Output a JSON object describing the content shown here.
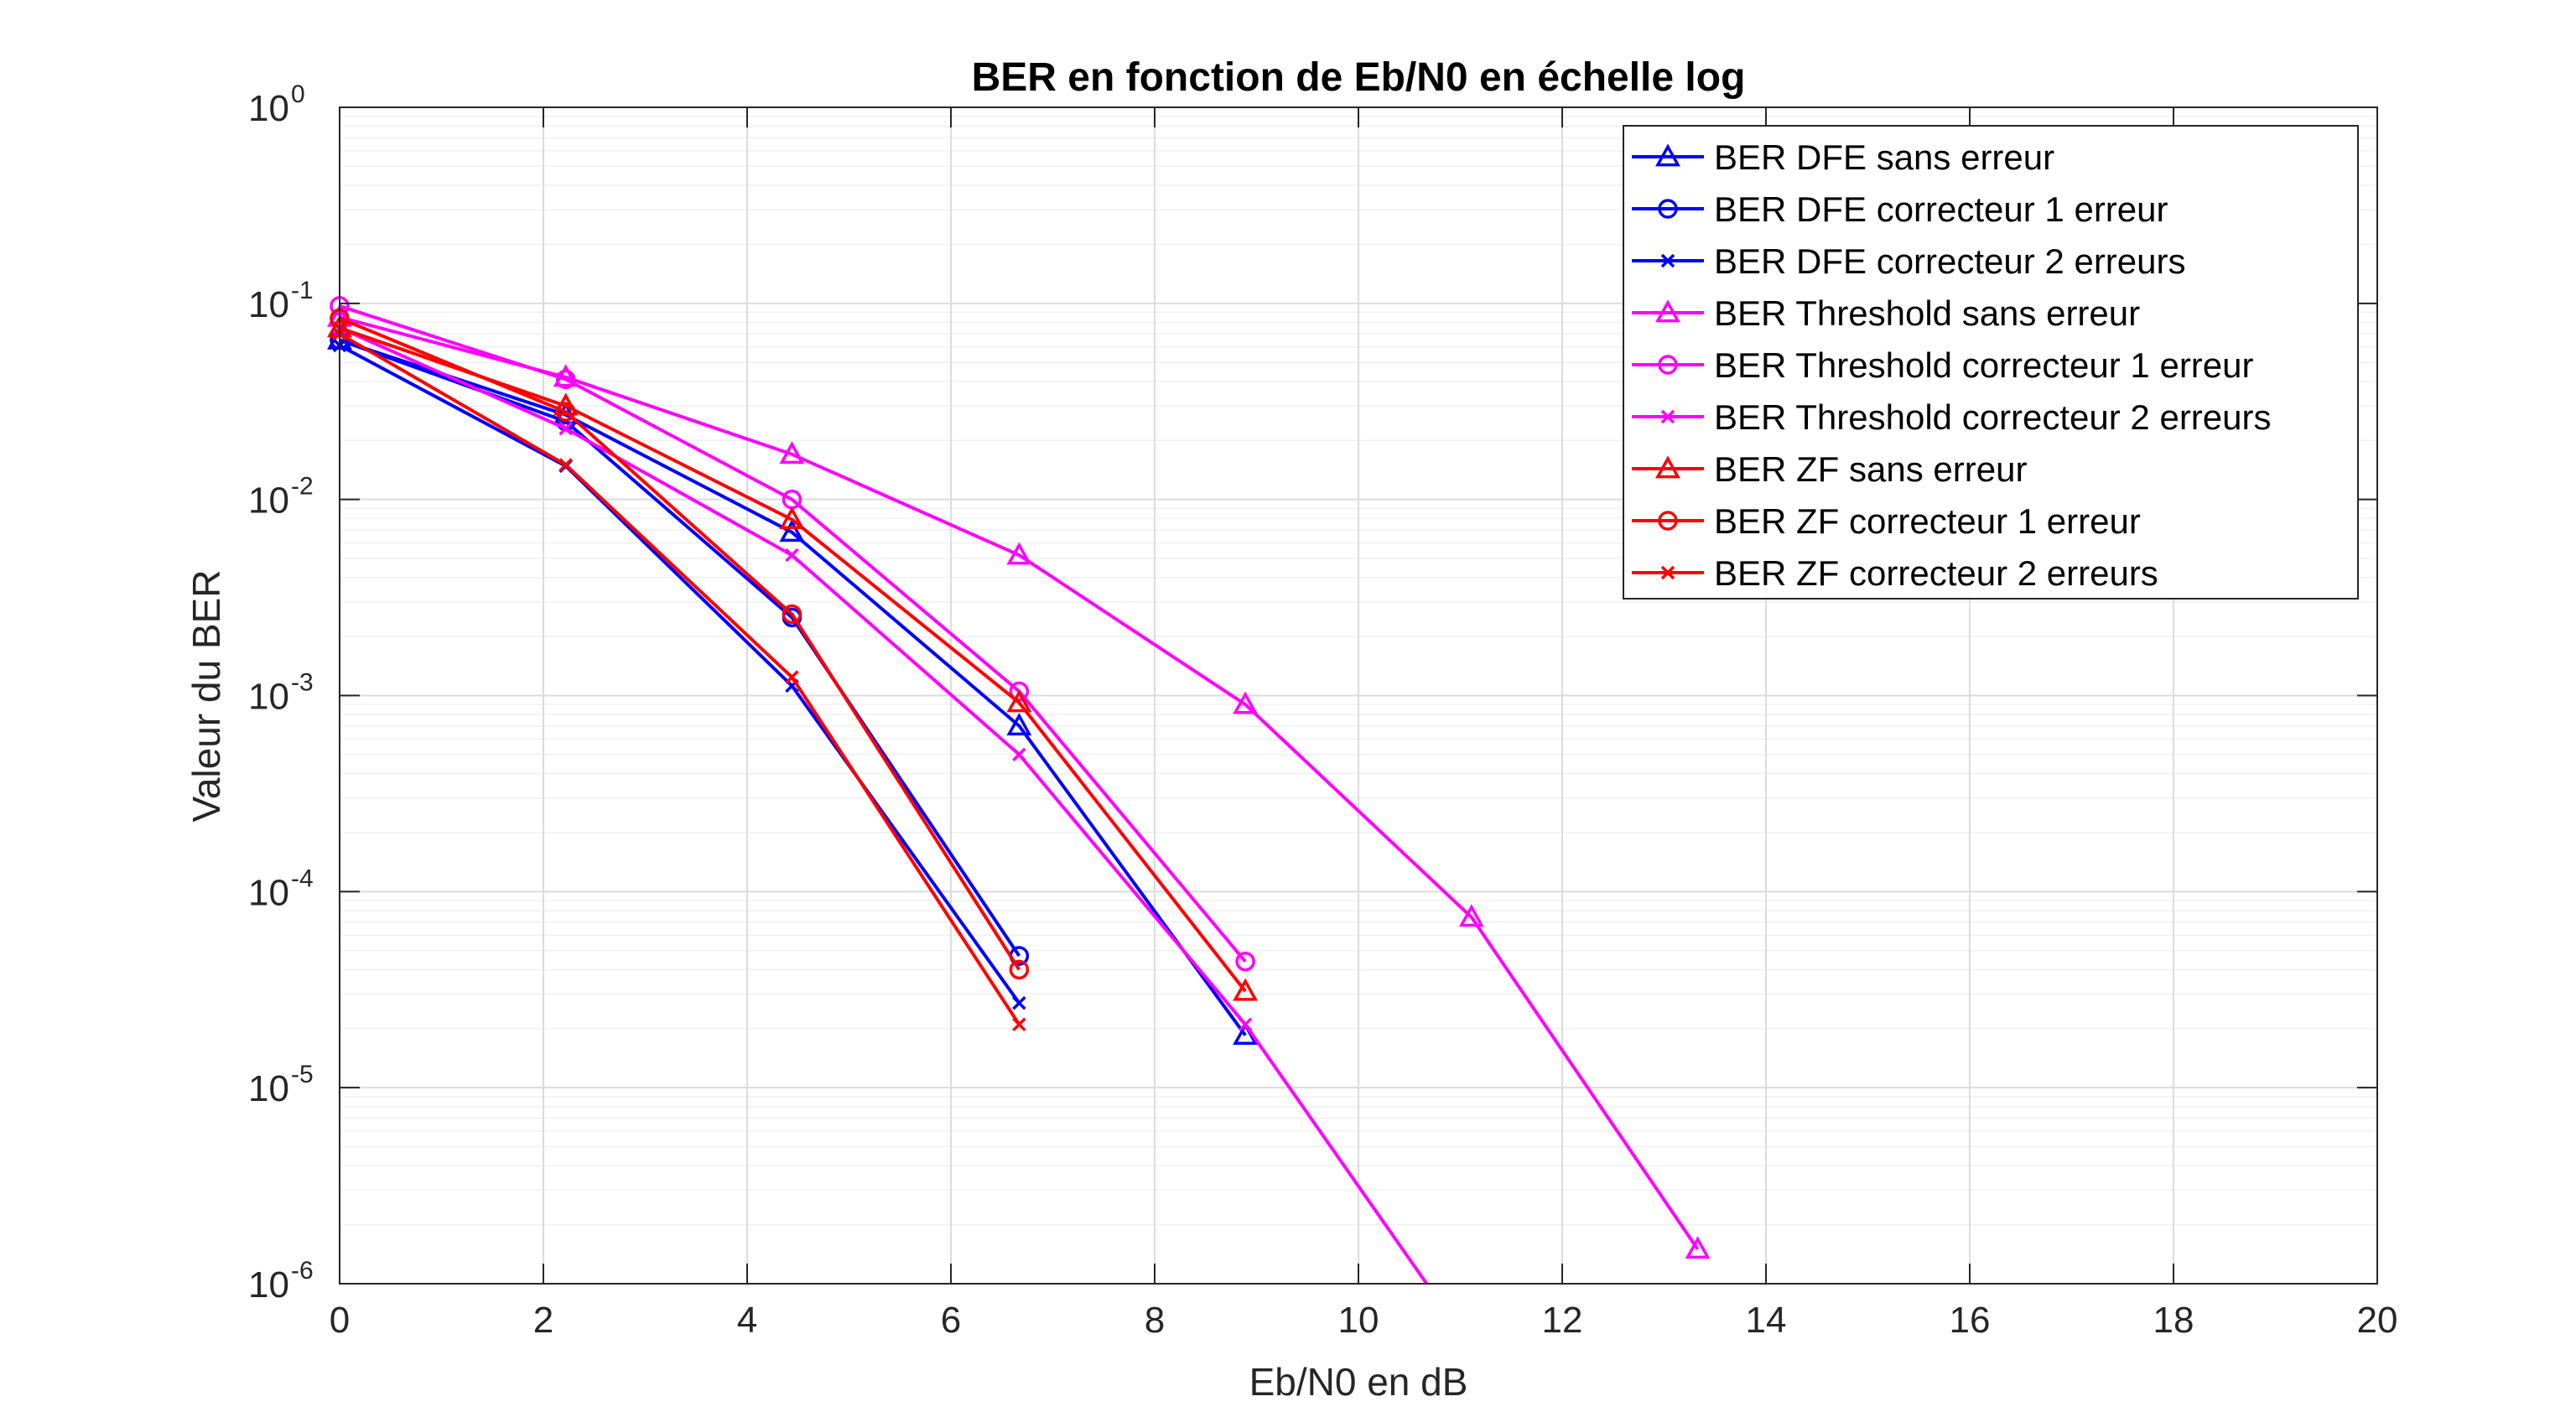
{
  "chart_data": {
    "type": "line",
    "title": "BER en fonction de Eb/N0 en échelle log",
    "xlabel": "Eb/N0 en dB",
    "ylabel": "Valeur du BER",
    "xlim": [
      0,
      20
    ],
    "ylim": [
      1e-06,
      1
    ],
    "yscale": "log",
    "grid": true,
    "legend_position": "top-right",
    "xticks": [
      "0",
      "2",
      "4",
      "6",
      "8",
      "10",
      "12",
      "14",
      "16",
      "18",
      "20"
    ],
    "yticks": [
      {
        "base": "10",
        "exp": "0"
      },
      {
        "base": "10",
        "exp": "-1"
      },
      {
        "base": "10",
        "exp": "-2"
      },
      {
        "base": "10",
        "exp": "-3"
      },
      {
        "base": "10",
        "exp": "-4"
      },
      {
        "base": "10",
        "exp": "-5"
      },
      {
        "base": "10",
        "exp": "-6"
      }
    ],
    "series": [
      {
        "name": "BER DFE sans erreur",
        "color": "#0000FF",
        "marker": "triangle",
        "x": [
          0,
          2.22,
          4.44,
          6.67,
          8.89
        ],
        "y": [
          0.065,
          0.027,
          0.0068,
          0.0007,
          1.85e-05
        ]
      },
      {
        "name": "BER DFE correcteur 1 erreur",
        "color": "#0000FF",
        "marker": "circle",
        "x": [
          0,
          2.22,
          4.44,
          6.67
        ],
        "y": [
          0.065,
          0.025,
          0.0025,
          4.7e-05
        ]
      },
      {
        "name": "BER DFE correcteur 2 erreurs",
        "color": "#0000FF",
        "marker": "x",
        "x": [
          0,
          2.22,
          4.44,
          6.67
        ],
        "y": [
          0.061,
          0.0148,
          0.00112,
          2.7e-05
        ]
      },
      {
        "name": "BER Threshold sans erreur",
        "color": "#FF00FF",
        "marker": "triangle",
        "x": [
          0,
          2.22,
          4.44,
          6.67,
          8.89,
          11.11,
          13.33
        ],
        "y": [
          0.085,
          0.042,
          0.017,
          0.0052,
          0.0009,
          7.4e-05,
          1.5e-06
        ]
      },
      {
        "name": "BER Threshold correcteur 1 erreur",
        "color": "#FF00FF",
        "marker": "circle",
        "x": [
          0,
          2.22,
          4.44,
          6.67,
          8.89
        ],
        "y": [
          0.097,
          0.041,
          0.01,
          0.00105,
          4.4e-05
        ]
      },
      {
        "name": "BER Threshold correcteur 2 erreurs",
        "color": "#FF00FF",
        "marker": "x",
        "x": [
          0,
          2.22,
          4.44,
          6.67,
          8.89,
          10.67
        ],
        "y": [
          0.075,
          0.023,
          0.0052,
          0.0005,
          2.1e-05,
          1e-06
        ]
      },
      {
        "name": "BER ZF sans erreur",
        "color": "#FF0000",
        "marker": "triangle",
        "x": [
          0,
          2.22,
          4.44,
          6.67,
          8.89
        ],
        "y": [
          0.075,
          0.03,
          0.0079,
          0.00092,
          3.1e-05
        ]
      },
      {
        "name": "BER ZF correcteur 1 erreur",
        "color": "#FF0000",
        "marker": "circle",
        "x": [
          0,
          2.22,
          4.44,
          6.67
        ],
        "y": [
          0.084,
          0.028,
          0.0026,
          4e-05
        ]
      },
      {
        "name": "BER ZF correcteur 2 erreurs",
        "color": "#FF0000",
        "marker": "x",
        "x": [
          0,
          2.22,
          4.44,
          6.67
        ],
        "y": [
          0.07,
          0.015,
          0.00124,
          2.1e-05
        ]
      }
    ]
  }
}
